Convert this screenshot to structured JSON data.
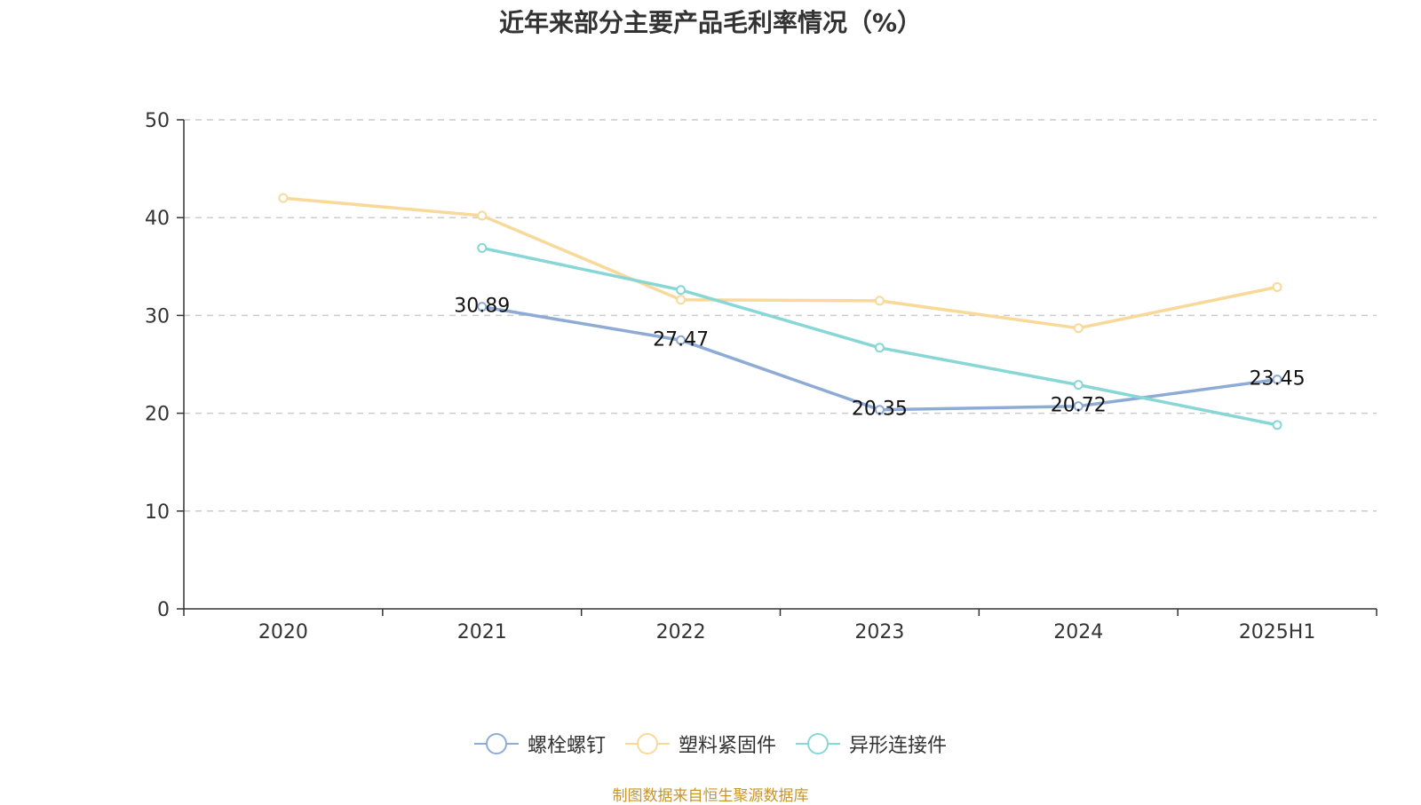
{
  "chart_data": {
    "type": "line",
    "title": "近年来部分主要产品毛利率情况（%）",
    "categories": [
      "2020",
      "2021",
      "2022",
      "2023",
      "2024",
      "2025H1"
    ],
    "ylim": [
      0,
      50
    ],
    "yticks": [
      "0",
      "10",
      "20",
      "30",
      "40",
      "50"
    ],
    "grid": true,
    "legend_position": "bottom",
    "series": [
      {
        "name": "螺栓螺钉",
        "color": "#8eabd6",
        "values": [
          null,
          30.89,
          27.47,
          20.35,
          20.72,
          23.45
        ],
        "labels": [
          null,
          "30.89",
          "27.47",
          "20.35",
          "20.72",
          "23.45"
        ]
      },
      {
        "name": "塑料紧固件",
        "color": "#f9d999",
        "values": [
          42.0,
          40.2,
          31.6,
          31.5,
          28.7,
          32.9
        ],
        "labels": null
      },
      {
        "name": "异形连接件",
        "color": "#88d7d6",
        "values": [
          null,
          36.9,
          32.6,
          26.7,
          22.9,
          18.8
        ],
        "labels": null
      }
    ]
  },
  "source_note": "制图数据来自恒生聚源数据库"
}
